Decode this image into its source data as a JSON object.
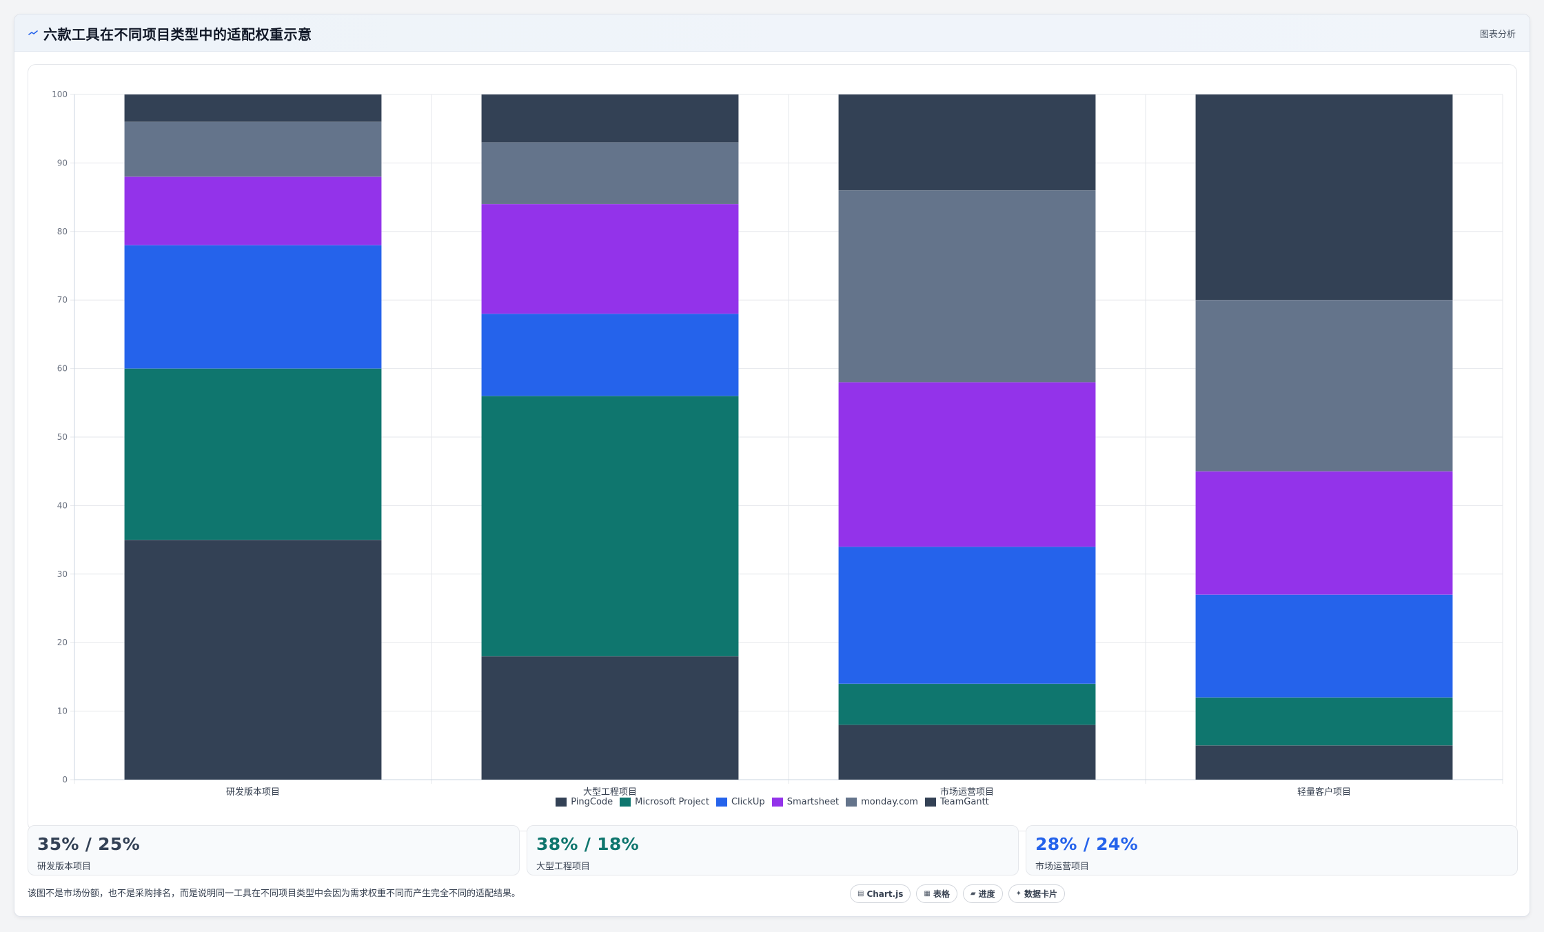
{
  "header": {
    "title": "六款工具在不同项目类型中的适配权重示意",
    "tag": "图表分析",
    "icon": "trend-line-icon"
  },
  "colors": {
    "PingCode": "#334155",
    "Microsoft Project": "#0f766e",
    "ClickUp": "#2563eb",
    "Smartsheet": "#9333ea",
    "monday.com": "#64748b",
    "TeamGantt": "#334155"
  },
  "chart_data": {
    "type": "bar",
    "stacked": true,
    "categories": [
      "研发版本项目",
      "大型工程项目",
      "市场运营项目",
      "轻量客户项目"
    ],
    "series": [
      {
        "name": "PingCode",
        "values": [
          35,
          18,
          8,
          5
        ]
      },
      {
        "name": "Microsoft Project",
        "values": [
          25,
          38,
          6,
          7
        ]
      },
      {
        "name": "ClickUp",
        "values": [
          18,
          12,
          20,
          15
        ]
      },
      {
        "name": "Smartsheet",
        "values": [
          10,
          16,
          24,
          18
        ]
      },
      {
        "name": "monday.com",
        "values": [
          8,
          9,
          28,
          25
        ]
      },
      {
        "name": "TeamGantt",
        "values": [
          4,
          7,
          14,
          30
        ]
      }
    ],
    "ylim": [
      0,
      100
    ],
    "yticks": [
      0,
      10,
      20,
      30,
      40,
      50,
      60,
      70,
      80,
      90,
      100
    ],
    "grid": true,
    "legend": "bottom"
  },
  "kpis": [
    {
      "value": "35% / 25%",
      "label": "研发版本项目",
      "color": "#334155"
    },
    {
      "value": "38% / 18%",
      "label": "大型工程项目",
      "color": "#0f766e"
    },
    {
      "value": "28% / 24%",
      "label": "市场运营项目",
      "color": "#2563eb"
    }
  ],
  "footnote": "该图不是市场份额，也不是采购排名，而是说明同一工具在不同项目类型中会因为需求权重不同而产生完全不同的适配结果。",
  "chips": [
    {
      "icon": "▤",
      "label": "Chart.js",
      "name": "chartjs-chip"
    },
    {
      "icon": "▦",
      "label": "表格",
      "name": "table-chip"
    },
    {
      "icon": "▰",
      "label": "进度",
      "name": "progress-chip"
    },
    {
      "icon": "✦",
      "label": "数据卡片",
      "name": "data-card-chip"
    }
  ]
}
